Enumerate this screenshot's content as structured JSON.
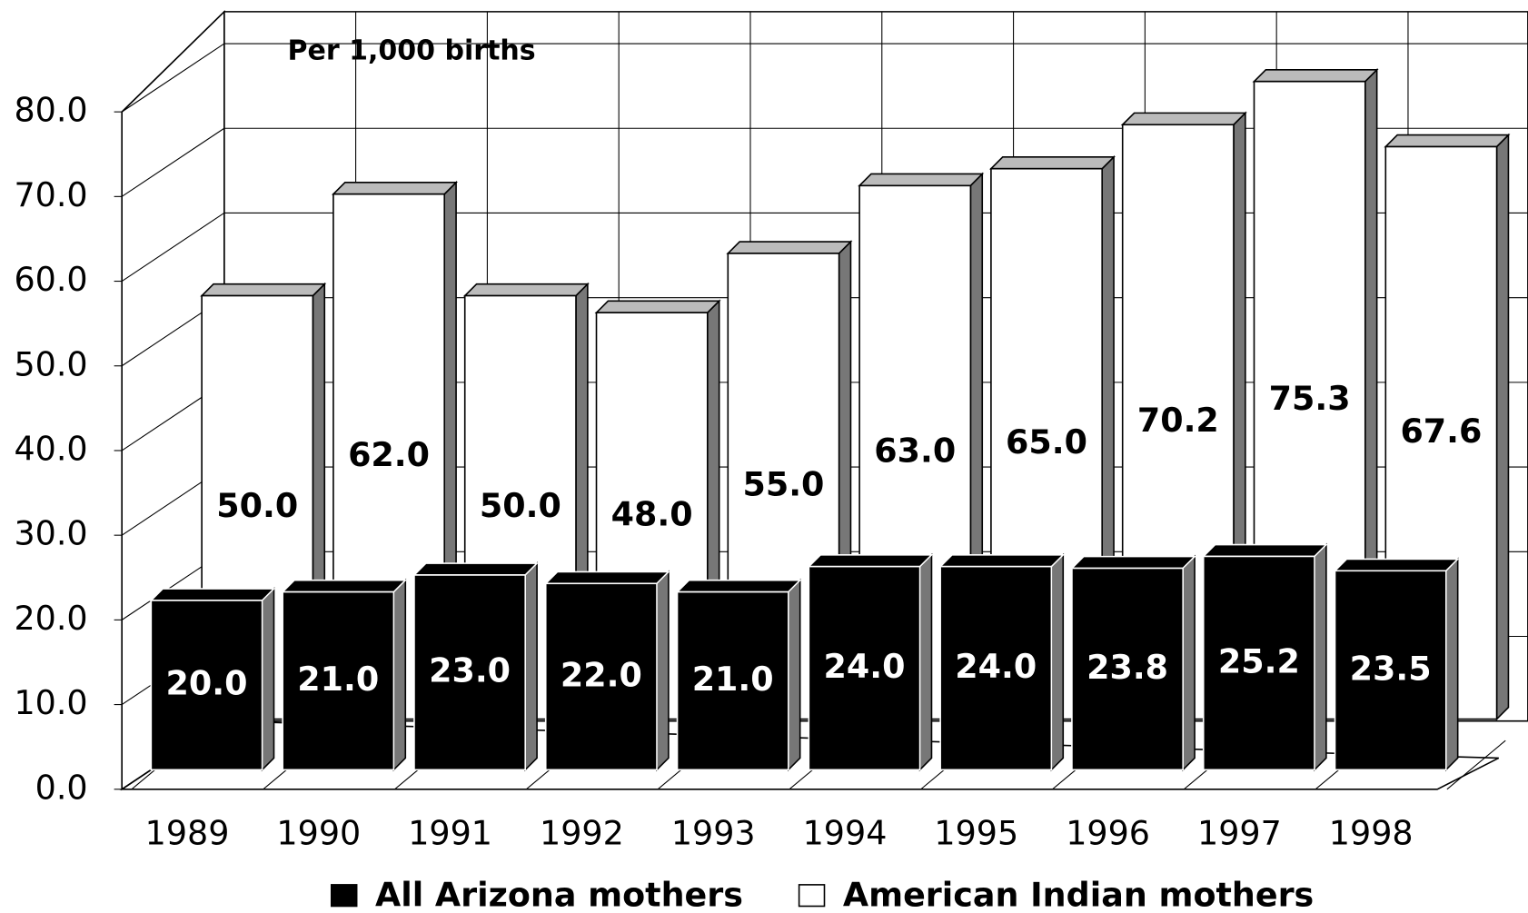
{
  "chart_data": {
    "type": "bar3d",
    "annotation": "Per 1,000 births",
    "categories": [
      "1989",
      "1990",
      "1991",
      "1992",
      "1993",
      "1994",
      "1995",
      "1996",
      "1997",
      "1998"
    ],
    "series": [
      {
        "name": "All Arizona mothers",
        "color": "#000000",
        "values": [
          20,
          21,
          23,
          22,
          21,
          24,
          24,
          23.8,
          25.2,
          23.5
        ],
        "value_labels": [
          "20.0",
          "21.0",
          "23.0",
          "22.0",
          "21.0",
          "24.0",
          "24.0",
          "23.8",
          "25.2",
          "23.5"
        ]
      },
      {
        "name": "American Indian mothers",
        "color": "#ffffff",
        "values": [
          50,
          62,
          50,
          48,
          55,
          63,
          65,
          70.2,
          75.3,
          67.6
        ],
        "value_labels": [
          "50.0",
          "62.0",
          "50.0",
          "48.0",
          "55.0",
          "63.0",
          "65.0",
          "70.2",
          "75.3",
          "67.6"
        ]
      }
    ],
    "ylim": [
      0,
      80
    ],
    "yticks": [
      {
        "value": 0,
        "label": "0.0"
      },
      {
        "value": 10,
        "label": "10.0"
      },
      {
        "value": 20,
        "label": "20.0"
      },
      {
        "value": 30,
        "label": "30.0"
      },
      {
        "value": 40,
        "label": "40.0"
      },
      {
        "value": 50,
        "label": "50.0"
      },
      {
        "value": 60,
        "label": "60.0"
      },
      {
        "value": 70,
        "label": "70.0"
      },
      {
        "value": 80,
        "label": "80.0"
      }
    ],
    "grid": true,
    "legend": "bottom"
  }
}
